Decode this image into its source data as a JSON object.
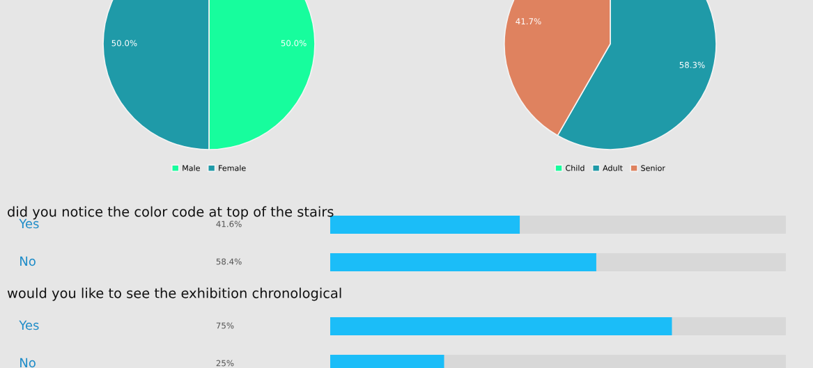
{
  "chart_data": [
    {
      "type": "pie",
      "categories": [
        "Male",
        "Female"
      ],
      "values": [
        50.0,
        50.0
      ],
      "colors": [
        "#17fd9d",
        "#1f9aa8"
      ],
      "value_labels": [
        "50.0%",
        "50.0%"
      ],
      "legend": "bottom"
    },
    {
      "type": "pie",
      "categories": [
        "Child",
        "Adult",
        "Senior"
      ],
      "values": [
        0,
        58.3,
        41.7
      ],
      "colors": [
        "#17fd9d",
        "#1f9aa8",
        "#df825f"
      ],
      "value_labels": [
        null,
        "58.3%",
        "41.7%"
      ],
      "legend": "bottom"
    },
    {
      "type": "bar",
      "orientation": "horizontal",
      "title": "did you notice the color code at top of the stairs",
      "categories": [
        "Yes",
        "No"
      ],
      "values": [
        41.6,
        58.4
      ],
      "color": "#1bbdf8",
      "value_labels": [
        "41.6%",
        "58.4%"
      ],
      "xlim": [
        0,
        100
      ],
      "tick_labels": "y"
    },
    {
      "type": "bar",
      "orientation": "horizontal",
      "title": "would you like to see the exhibition chronological",
      "categories": [
        "Yes",
        "No"
      ],
      "values": [
        75,
        25
      ],
      "color": "#1bbdf8",
      "value_labels": [
        "75%",
        "25%"
      ],
      "xlim": [
        0,
        100
      ],
      "tick_labels": "y"
    }
  ]
}
